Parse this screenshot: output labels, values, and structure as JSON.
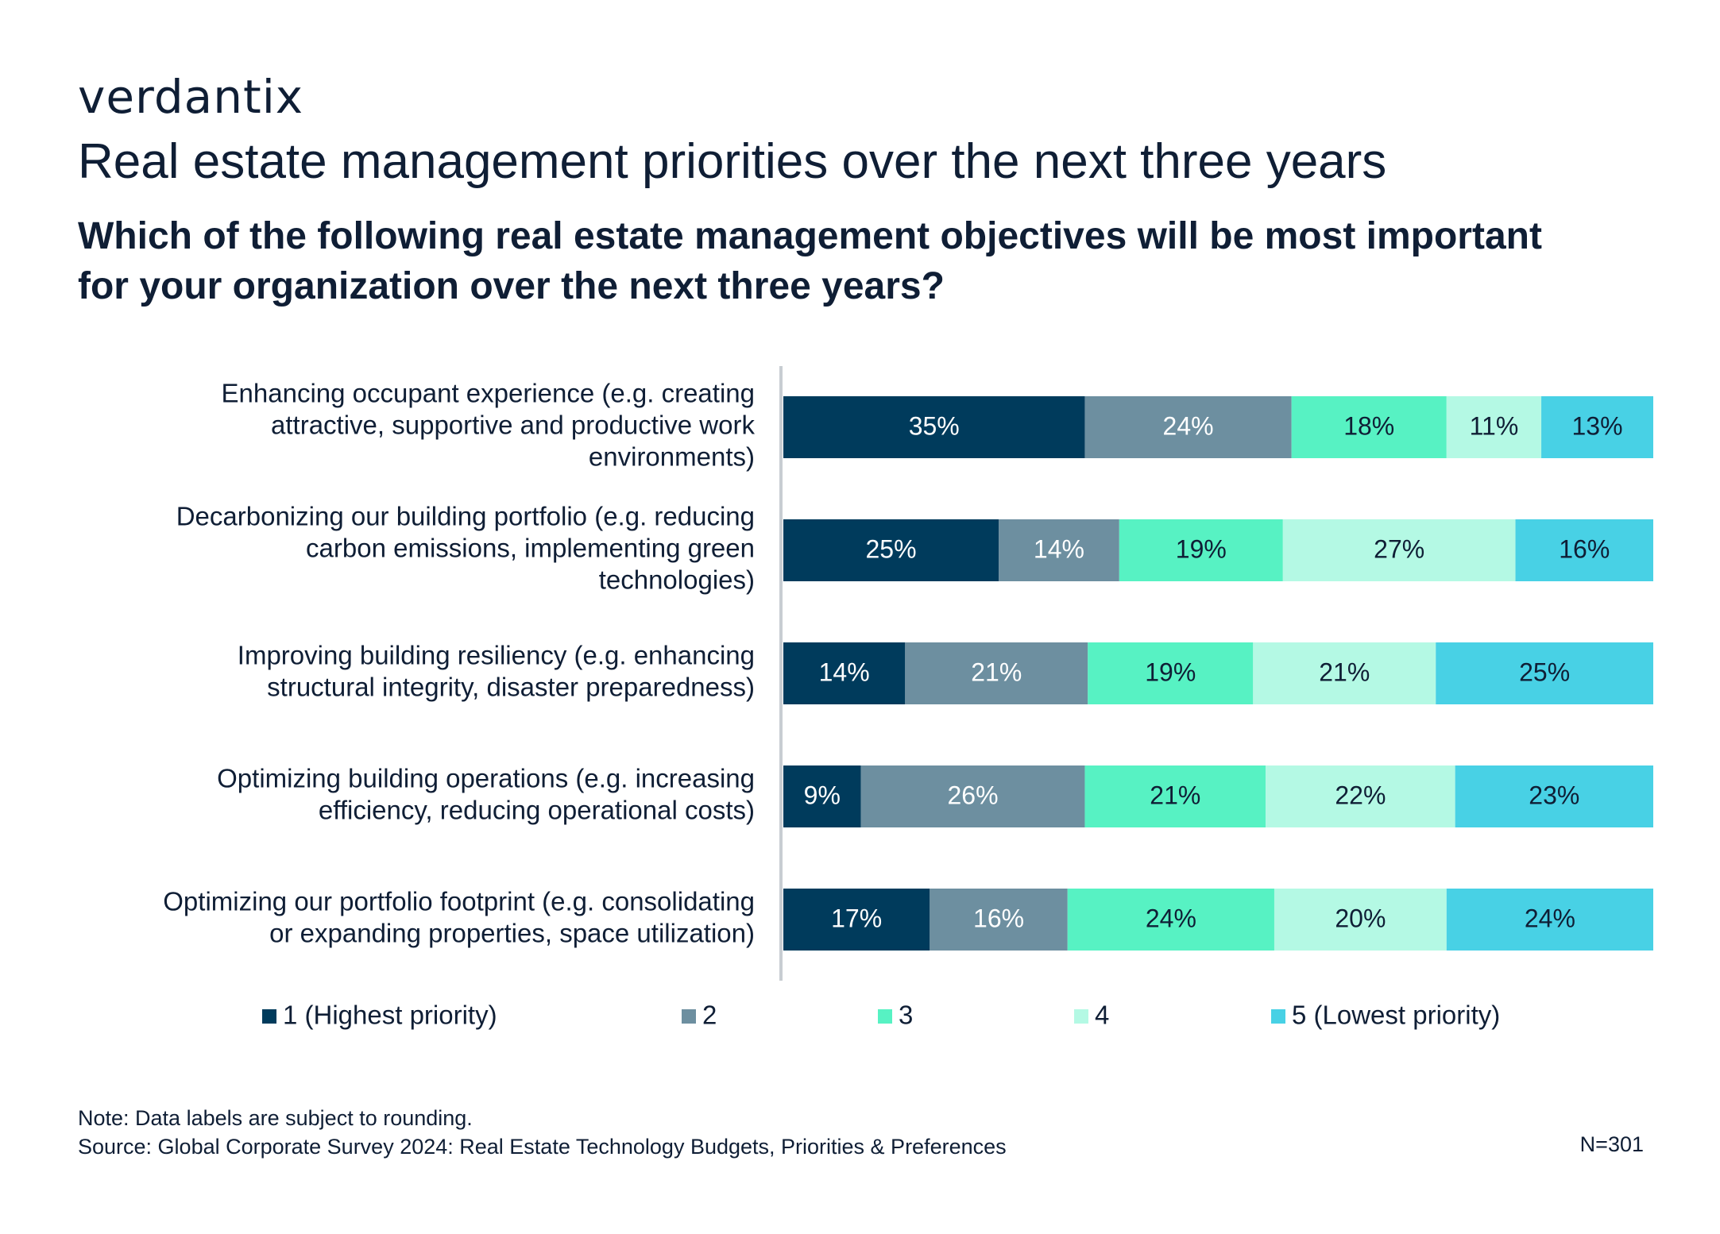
{
  "brand": "verdantix",
  "chart_data": {
    "type": "bar",
    "orientation": "horizontal",
    "stacked": true,
    "title": "Real estate management priorities over the next three years",
    "subtitle": "Which of the following real estate management objectives will be most important for your organization over the next three years?",
    "categories": [
      [
        "Enhancing occupant experience (e.g. creating",
        "attractive, supportive and productive work",
        "environments)"
      ],
      [
        "Decarbonizing our building portfolio (e.g. reducing",
        "carbon emissions, implementing green",
        "technologies)"
      ],
      [
        "Improving building resiliency (e.g. enhancing",
        "structural integrity, disaster preparedness)"
      ],
      [
        "Optimizing building operations (e.g. increasing",
        "efficiency, reducing operational costs)"
      ],
      [
        "Optimizing our portfolio footprint (e.g. consolidating",
        "or expanding properties, space utilization)"
      ]
    ],
    "series": [
      {
        "name": "1 (Highest priority)",
        "color": "#003b5c",
        "label_color": "#ffffff",
        "values": [
          35,
          25,
          14,
          9,
          17
        ]
      },
      {
        "name": "2",
        "color": "#6d8fa0",
        "label_color": "#ffffff",
        "values": [
          24,
          14,
          21,
          26,
          16
        ]
      },
      {
        "name": "3",
        "color": "#57f2c3",
        "label_color": "#0f1e35",
        "values": [
          18,
          19,
          19,
          21,
          24
        ]
      },
      {
        "name": "4",
        "color": "#b4f9e4",
        "label_color": "#0f1e35",
        "values": [
          11,
          27,
          21,
          22,
          20
        ]
      },
      {
        "name": "5 (Lowest priority)",
        "color": "#48d1e5",
        "label_color": "#0f1e35",
        "values": [
          13,
          16,
          25,
          23,
          24
        ]
      }
    ],
    "value_suffix": "%",
    "legend_position": "bottom",
    "grid": false
  },
  "footer": {
    "note": "Note: Data labels are subject to rounding.",
    "source": "Source: Global Corporate Survey 2024: Real Estate Technology Budgets, Priorities & Preferences",
    "n": "N=301"
  }
}
